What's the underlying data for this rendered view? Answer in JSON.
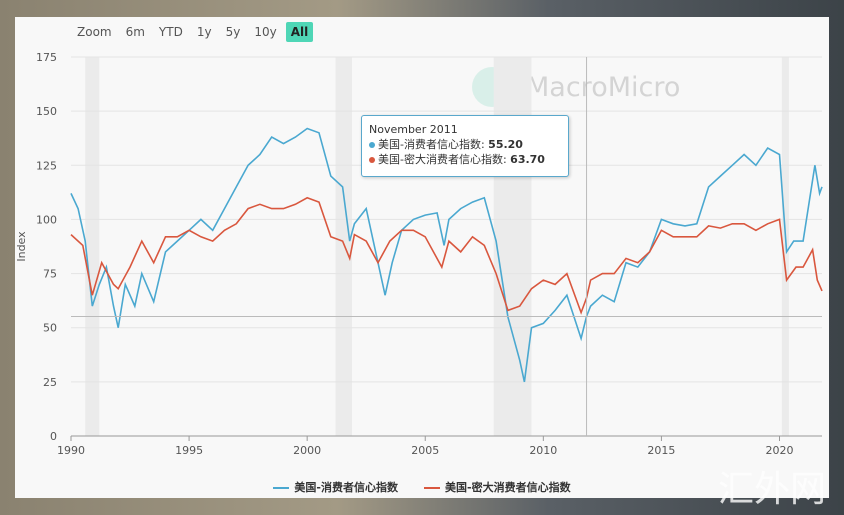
{
  "zoom": {
    "label": "Zoom",
    "buttons": [
      "6m",
      "YTD",
      "1y",
      "5y",
      "10y",
      "All"
    ],
    "active": "All"
  },
  "watermark": "MacroMicro",
  "corner_watermark": "汇外网",
  "tooltip": {
    "date": "November 2011",
    "rows": [
      {
        "name": "美国-消费者信心指数",
        "value": "55.20",
        "color": "#4aa8d0"
      },
      {
        "name": "美国-密大消费者信心指数",
        "value": "63.70",
        "color": "#d9573e"
      }
    ]
  },
  "chart_data": {
    "type": "line",
    "title": "",
    "xlabel": "",
    "ylabel": "Index",
    "xlim": [
      1990,
      2021.8
    ],
    "ylim": [
      0,
      175
    ],
    "xticks": [
      1990,
      1995,
      2000,
      2005,
      2010,
      2015,
      2020
    ],
    "yticks": [
      0,
      25,
      50,
      75,
      100,
      125,
      150,
      175
    ],
    "recessions": [
      [
        1990.6,
        1991.2
      ],
      [
        2001.2,
        2001.9
      ],
      [
        2007.9,
        2009.5
      ],
      [
        2020.1,
        2020.4
      ]
    ],
    "crosshair_x": 2011.83,
    "crosshair_y": 55.2,
    "legend": "bottom",
    "series": [
      {
        "name": "美国-消费者信心指数",
        "color": "#4aa8d0",
        "x": [
          1990,
          1990.3,
          1990.6,
          1990.9,
          1991.2,
          1991.5,
          1991.8,
          1992,
          1992.3,
          1992.7,
          1993,
          1993.5,
          1994,
          1994.5,
          1995,
          1995.5,
          1996,
          1996.5,
          1997,
          1997.5,
          1998,
          1998.5,
          1999,
          1999.5,
          2000,
          2000.5,
          2001,
          2001.5,
          2001.8,
          2002,
          2002.5,
          2003,
          2003.3,
          2003.6,
          2004,
          2004.5,
          2005,
          2005.5,
          2005.8,
          2006,
          2006.5,
          2007,
          2007.5,
          2008,
          2008.5,
          2009,
          2009.2,
          2009.5,
          2010,
          2010.5,
          2011,
          2011.6,
          2011.83,
          2012,
          2012.5,
          2013,
          2013.5,
          2014,
          2014.5,
          2015,
          2015.5,
          2016,
          2016.5,
          2017,
          2017.5,
          2018,
          2018.5,
          2019,
          2019.5,
          2020,
          2020.3,
          2020.6,
          2021,
          2021.5,
          2021.7,
          2021.8
        ],
        "y": [
          112,
          105,
          90,
          60,
          70,
          78,
          60,
          50,
          70,
          60,
          75,
          62,
          85,
          90,
          95,
          100,
          95,
          105,
          115,
          125,
          130,
          138,
          135,
          138,
          142,
          140,
          120,
          115,
          90,
          98,
          105,
          80,
          65,
          80,
          95,
          100,
          102,
          103,
          88,
          100,
          105,
          108,
          110,
          90,
          55,
          35,
          25,
          50,
          52,
          58,
          65,
          45,
          55.2,
          60,
          65,
          62,
          80,
          78,
          85,
          100,
          98,
          97,
          98,
          115,
          120,
          125,
          130,
          125,
          133,
          130,
          85,
          90,
          90,
          125,
          112,
          115
        ]
      },
      {
        "name": "美国-密大消费者信心指数",
        "color": "#d9573e",
        "x": [
          1990,
          1990.5,
          1990.9,
          1991.3,
          1991.8,
          1992,
          1992.5,
          1993,
          1993.5,
          1994,
          1994.5,
          1995,
          1995.5,
          1996,
          1996.5,
          1997,
          1997.5,
          1998,
          1998.5,
          1999,
          1999.5,
          2000,
          2000.5,
          2001,
          2001.5,
          2001.8,
          2002,
          2002.5,
          2003,
          2003.5,
          2004,
          2004.5,
          2005,
          2005.7,
          2006,
          2006.5,
          2007,
          2007.5,
          2008,
          2008.5,
          2009,
          2009.5,
          2010,
          2010.5,
          2011,
          2011.6,
          2011.83,
          2012,
          2012.5,
          2013,
          2013.5,
          2014,
          2014.5,
          2015,
          2015.5,
          2016,
          2016.5,
          2017,
          2017.5,
          2018,
          2018.5,
          2019,
          2019.5,
          2020,
          2020.3,
          2020.7,
          2021,
          2021.4,
          2021.6,
          2021.8
        ],
        "y": [
          93,
          88,
          65,
          80,
          70,
          68,
          78,
          90,
          80,
          92,
          92,
          95,
          92,
          90,
          95,
          98,
          105,
          107,
          105,
          105,
          107,
          110,
          108,
          92,
          90,
          82,
          93,
          90,
          80,
          90,
          95,
          95,
          92,
          78,
          90,
          85,
          92,
          88,
          75,
          58,
          60,
          68,
          72,
          70,
          75,
          57,
          63.7,
          72,
          75,
          75,
          82,
          80,
          85,
          95,
          92,
          92,
          92,
          97,
          96,
          98,
          98,
          95,
          98,
          100,
          72,
          78,
          78,
          86,
          72,
          67
        ]
      }
    ]
  }
}
